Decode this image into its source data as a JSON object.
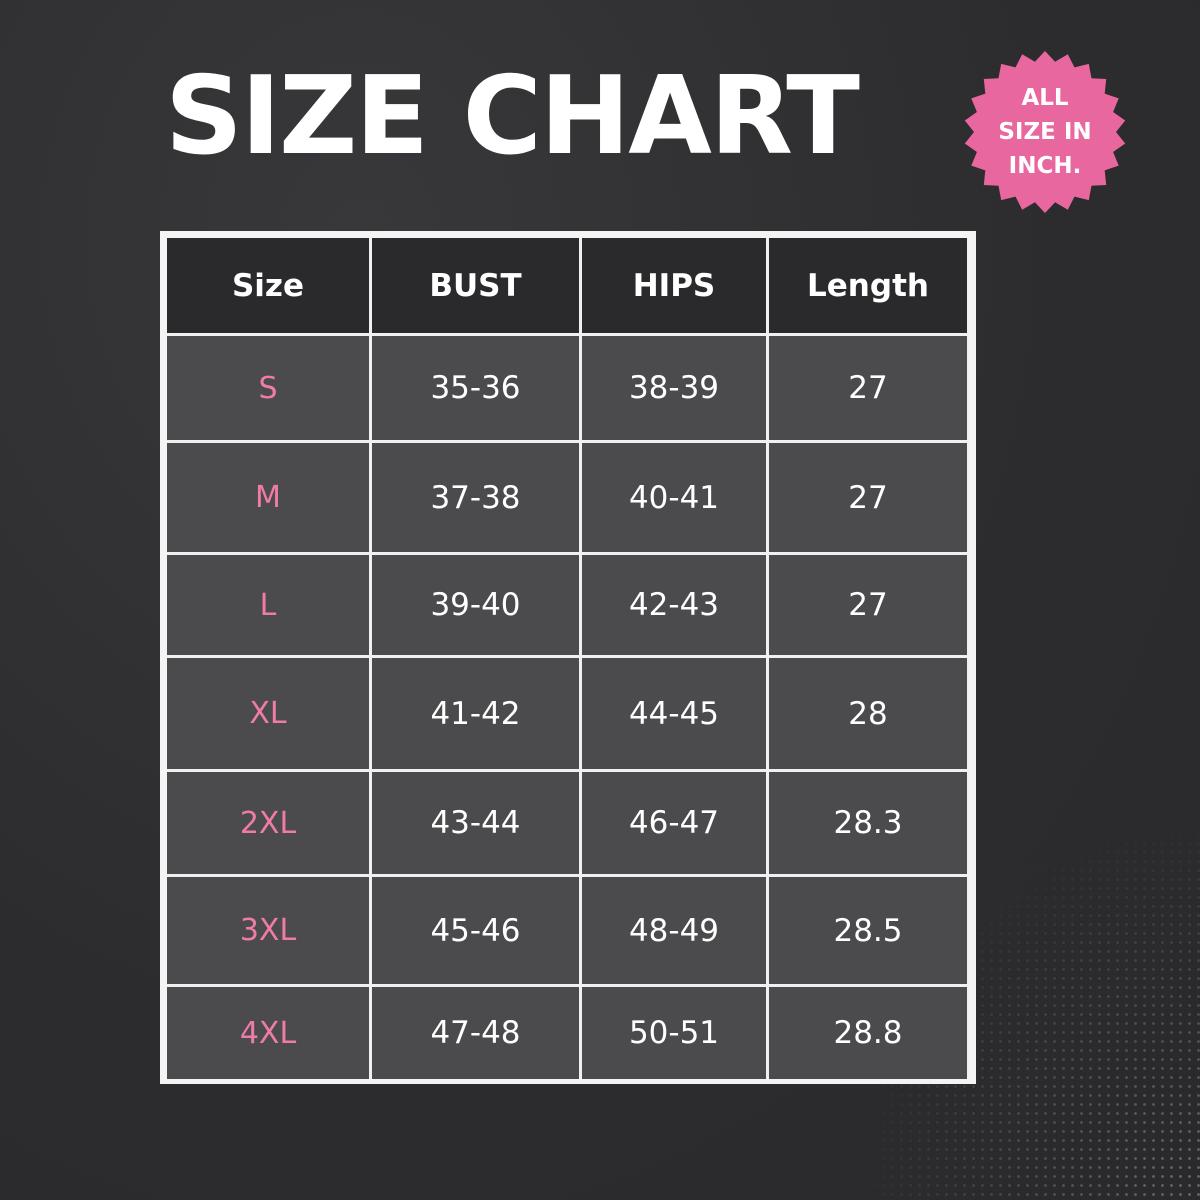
{
  "title": "SIZE CHART",
  "badge": {
    "lines": [
      "ALL",
      "SIZE IN",
      "INCH."
    ],
    "color": "#e8679e"
  },
  "colors": {
    "background": "#2e2e30",
    "header_cell": "#2a2a2c",
    "body_cell": "#4b4b4d",
    "size_label": "#f07aa8"
  },
  "table": {
    "headers": [
      "Size",
      "BUST",
      "HIPS",
      "Length"
    ],
    "rows": [
      [
        "S",
        "35-36",
        "38-39",
        "27"
      ],
      [
        "M",
        "37-38",
        "40-41",
        "27"
      ],
      [
        "L",
        "39-40",
        "42-43",
        "27"
      ],
      [
        "XL",
        "41-42",
        "44-45",
        "28"
      ],
      [
        "2XL",
        "43-44",
        "46-47",
        "28.3"
      ],
      [
        "3XL",
        "45-46",
        "48-49",
        "28.5"
      ],
      [
        "4XL",
        "47-48",
        "50-51",
        "28.8"
      ]
    ]
  }
}
